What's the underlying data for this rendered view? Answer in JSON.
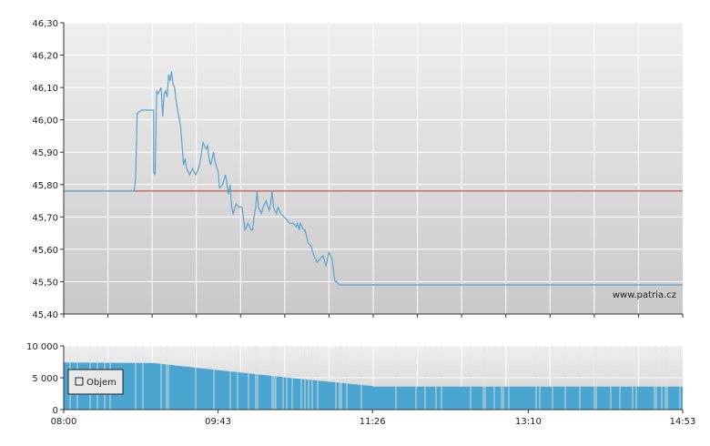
{
  "chart_data": [
    {
      "type": "line",
      "title": "",
      "xlabel": "",
      "ylabel": "",
      "ylim": [
        45.4,
        46.3
      ],
      "yticks": [
        "45,40",
        "45,50",
        "45,60",
        "45,70",
        "45,80",
        "45,90",
        "46,00",
        "46,10",
        "46,20",
        "46,30"
      ],
      "xlim": [
        "08:00",
        "14:53"
      ],
      "grid": true,
      "watermark": "www.patria.cz",
      "series": [
        {
          "color": "#5ba3cc",
          "x": [
            "08:00",
            "08:47",
            "08:48",
            "08:49",
            "08:52",
            "08:56",
            "09:00",
            "09:00",
            "09:01",
            "09:02",
            "09:03",
            "09:05",
            "09:06",
            "09:07",
            "09:08",
            "09:09",
            "09:10",
            "09:11",
            "09:12",
            "09:13",
            "09:14",
            "09:15",
            "09:16",
            "09:18",
            "09:20",
            "09:21",
            "09:22",
            "09:24",
            "09:26",
            "09:28",
            "09:30",
            "09:31",
            "09:33",
            "09:35",
            "09:36",
            "09:37",
            "09:38",
            "09:40",
            "09:41",
            "09:43",
            "09:44",
            "09:46",
            "09:48",
            "09:50",
            "09:51",
            "09:52",
            "09:53",
            "09:55",
            "09:57",
            "09:59",
            "10:01",
            "10:03",
            "10:05",
            "10:06",
            "10:07",
            "10:08",
            "10:09",
            "10:10",
            "10:12",
            "10:13",
            "10:15",
            "10:17",
            "10:18",
            "10:19",
            "10:20",
            "10:22",
            "10:23",
            "10:25",
            "10:27",
            "10:29",
            "10:31",
            "10:33",
            "10:35",
            "10:36",
            "10:37",
            "10:38",
            "10:40",
            "10:41",
            "10:43",
            "10:45",
            "10:47",
            "10:49",
            "10:51",
            "10:53",
            "10:55",
            "10:57",
            "10:59",
            "11:01",
            "11:02",
            "11:04",
            "11:06",
            "11:07",
            "11:09",
            "11:10",
            "11:12",
            "11:14",
            "11:16",
            "11:18",
            "11:20",
            "11:22",
            "11:23",
            "11:25",
            "11:27",
            "11:30",
            "14:53"
          ],
          "y": [
            45.78,
            45.78,
            45.82,
            46.02,
            46.03,
            46.03,
            46.03,
            45.84,
            45.83,
            46.09,
            46.08,
            46.1,
            46.01,
            46.08,
            46.09,
            46.07,
            46.14,
            46.12,
            46.15,
            46.11,
            46.1,
            46.06,
            46.03,
            45.98,
            45.86,
            45.88,
            45.85,
            45.83,
            45.85,
            45.83,
            45.85,
            45.87,
            45.93,
            45.91,
            45.92,
            45.88,
            45.86,
            45.9,
            45.87,
            45.84,
            45.79,
            45.8,
            45.83,
            45.77,
            45.8,
            45.73,
            45.71,
            45.74,
            45.73,
            45.73,
            45.66,
            45.68,
            45.66,
            45.66,
            45.7,
            45.73,
            45.78,
            45.73,
            45.71,
            45.73,
            45.75,
            45.72,
            45.74,
            45.78,
            45.73,
            45.71,
            45.73,
            45.71,
            45.7,
            45.69,
            45.68,
            45.68,
            45.67,
            45.68,
            45.66,
            45.68,
            45.66,
            45.66,
            45.62,
            45.61,
            45.58,
            45.56,
            45.57,
            45.58,
            45.55,
            45.59,
            45.57,
            45.5,
            45.5,
            45.49,
            45.49,
            45.49,
            45.49,
            45.49,
            45.49,
            45.49,
            45.49,
            45.49,
            45.49,
            45.49,
            45.49,
            45.49,
            45.49,
            45.49,
            45.49
          ]
        },
        {
          "color": "#cc3333",
          "x": [
            "08:00",
            "14:53"
          ],
          "y": [
            45.78,
            45.78
          ]
        }
      ]
    },
    {
      "type": "bar",
      "ylim": [
        0,
        10000
      ],
      "yticks": [
        "0",
        "5 000",
        "10 000"
      ],
      "xticks": [
        "08:00",
        "09:43",
        "11:26",
        "13:10",
        "14:53"
      ],
      "legend": "Objem",
      "legend_position": "left",
      "color": "#4aa6d0",
      "series": [
        {
          "name": "Objem",
          "x": [
            "08:00",
            "09:00",
            "09:43",
            "10:30",
            "11:26",
            "11:27",
            "14:53"
          ],
          "y": [
            7400,
            7300,
            6200,
            5000,
            3700,
            3600,
            3600
          ]
        }
      ]
    }
  ]
}
